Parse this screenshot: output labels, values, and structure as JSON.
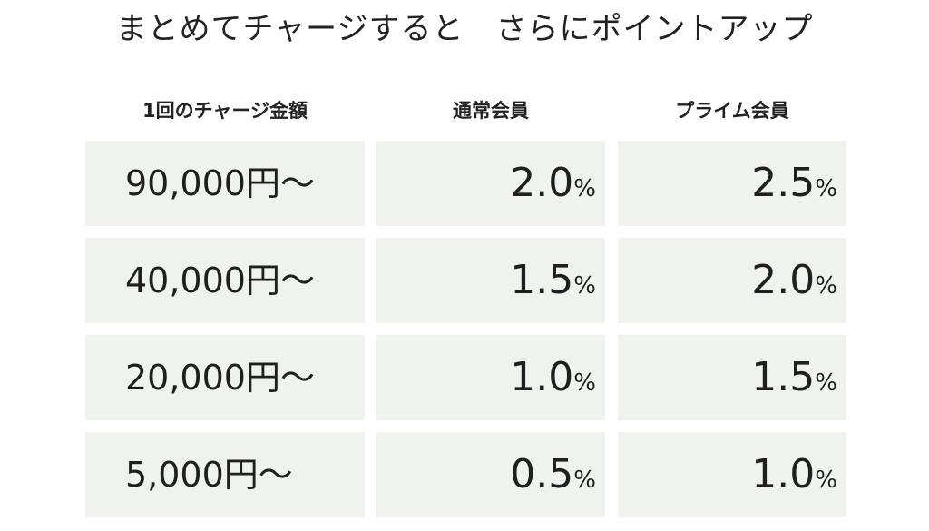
{
  "title": "まとめてチャージすると　さらにポイントアップ",
  "headers": {
    "amount": "1回のチャージ金額",
    "normal": "通常会員",
    "prime": "プライム会員"
  },
  "percent_sign": "%",
  "rows": [
    {
      "amount": "90,000円〜",
      "normal": "2.0",
      "prime": "2.5"
    },
    {
      "amount": "40,000円〜",
      "normal": "1.5",
      "prime": "2.0"
    },
    {
      "amount": "20,000円〜",
      "normal": "1.0",
      "prime": "1.5"
    },
    {
      "amount": "5,000円〜",
      "normal": "0.5",
      "prime": "1.0"
    }
  ],
  "colors": {
    "cell_background": "#f0f3ed",
    "text": "#1f1f1f"
  }
}
